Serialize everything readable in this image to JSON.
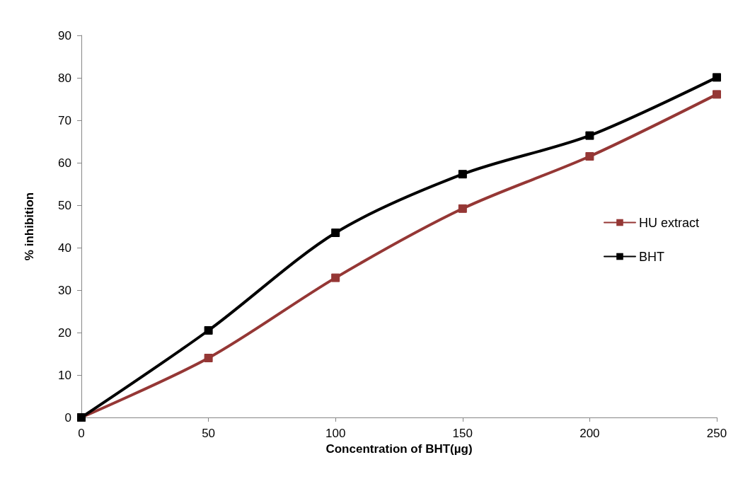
{
  "chart_data": {
    "type": "line",
    "xlabel": "Concentration of BHT(µg)",
    "ylabel": "% inhibition",
    "x": [
      0,
      50,
      100,
      150,
      200,
      250
    ],
    "xlim": [
      0,
      250
    ],
    "xticks": [
      0,
      50,
      100,
      150,
      200,
      250
    ],
    "ylim": [
      0,
      90
    ],
    "yticks": [
      0,
      10,
      20,
      30,
      40,
      50,
      60,
      70,
      80,
      90
    ],
    "series": [
      {
        "name": "HU extract",
        "color": "#953735",
        "values": [
          0,
          14.0,
          32.9,
          49.2,
          61.5,
          76.1
        ]
      },
      {
        "name": "BHT",
        "color": "#000000",
        "values": [
          0,
          20.5,
          43.5,
          57.3,
          66.4,
          80.1
        ]
      }
    ],
    "marker": "square",
    "line_style": "solid",
    "grid": false,
    "legend": "right"
  }
}
